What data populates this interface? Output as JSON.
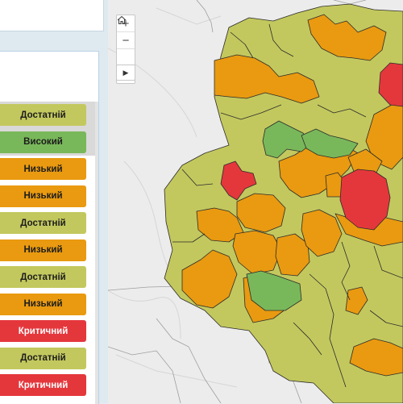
{
  "legend_colors": {
    "critical": "#e4373c",
    "low": "#e99a10",
    "sufficient": "#c3c85e",
    "high": "#79b85a"
  },
  "status_list": [
    {
      "label": "Достатній",
      "level": "sufficient",
      "selected": true
    },
    {
      "label": "Високий",
      "level": "high",
      "selected": true
    },
    {
      "label": "Низький",
      "level": "low",
      "selected": false
    },
    {
      "label": "Низький",
      "level": "low",
      "selected": false
    },
    {
      "label": "Достатній",
      "level": "sufficient",
      "selected": false
    },
    {
      "label": "Низький",
      "level": "low",
      "selected": false
    },
    {
      "label": "Достатній",
      "level": "sufficient",
      "selected": false
    },
    {
      "label": "Низький",
      "level": "low",
      "selected": false
    },
    {
      "label": "Критичний",
      "level": "critical",
      "selected": false
    },
    {
      "label": "Достатній",
      "level": "sufficient",
      "selected": false
    },
    {
      "label": "Критичний",
      "level": "critical",
      "selected": false
    }
  ],
  "map_controls": {
    "zoom_in": "+",
    "zoom_out": "−",
    "home_icon": "home-icon",
    "play_icon": "play-icon"
  }
}
